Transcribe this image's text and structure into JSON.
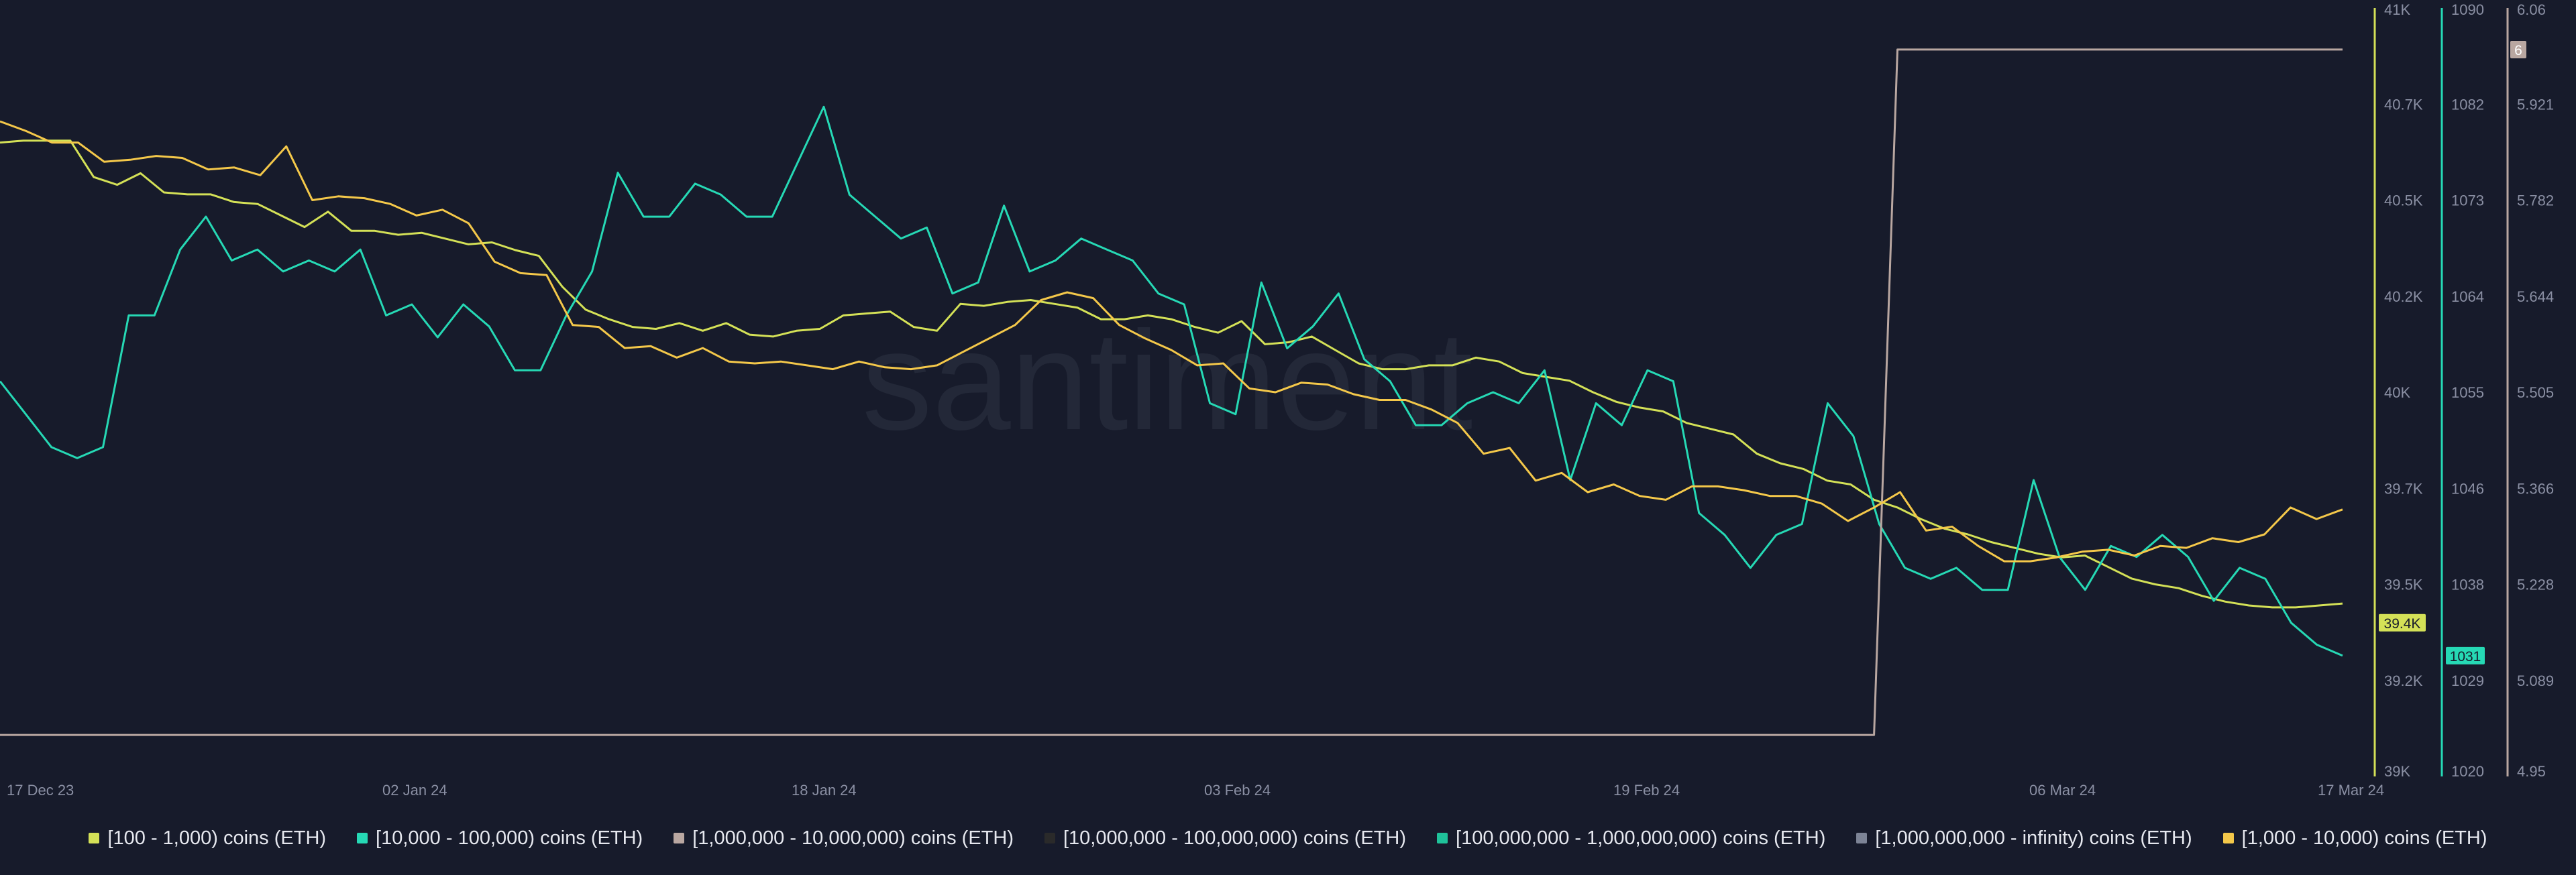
{
  "watermark": "santiment",
  "chart_data": {
    "type": "line",
    "x_ticks": [
      "17 Dec 23",
      "02 Jan 24",
      "18 Jan 24",
      "03 Feb 24",
      "19 Feb 24",
      "06 Mar 24",
      "17 Mar 24"
    ],
    "axes": [
      {
        "id": "a1",
        "color": "#d4e157",
        "ticks": [
          "41K",
          "40.7K",
          "40.5K",
          "40.2K",
          "40K",
          "39.7K",
          "39.5K",
          "39.2K",
          "39K"
        ],
        "ylim": [
          39000,
          41000
        ],
        "badge": "39.4K"
      },
      {
        "id": "a2",
        "color": "#26d9b5",
        "ticks": [
          "1090",
          "1082",
          "1073",
          "1064",
          "1055",
          "1046",
          "1038",
          "1029",
          "1020"
        ],
        "ylim": [
          1020,
          1090
        ],
        "badge": "1031"
      },
      {
        "id": "a3",
        "color": "#b9a7a1",
        "ticks": [
          "6.06",
          "5.921",
          "5.782",
          "5.644",
          "5.505",
          "5.366",
          "5.228",
          "5.089",
          "4.95"
        ],
        "ylim": [
          4.95,
          6.06
        ],
        "badge": "6"
      }
    ],
    "series": [
      {
        "name": "[100 - 1,000) coins (ETH)",
        "color": "#d4e157",
        "axis": "a1",
        "values": [
          40650,
          40655,
          40655,
          40655,
          40560,
          40540,
          40570,
          40520,
          40515,
          40515,
          40495,
          40490,
          40460,
          40430,
          40470,
          40420,
          40420,
          40410,
          40415,
          40400,
          40385,
          40390,
          40370,
          40355,
          40275,
          40215,
          40190,
          40170,
          40165,
          40180,
          40160,
          40180,
          40150,
          40145,
          40160,
          40165,
          40200,
          40205,
          40210,
          40170,
          40160,
          40230,
          40225,
          40235,
          40240,
          40230,
          40220,
          40190,
          40190,
          40200,
          40190,
          40170,
          40155,
          40185,
          40125,
          40130,
          40145,
          40110,
          40075,
          40060,
          40060,
          40070,
          40070,
          40090,
          40080,
          40050,
          40040,
          40030,
          40000,
          39975,
          39960,
          39950,
          39920,
          39905,
          39890,
          39840,
          39815,
          39800,
          39770,
          39760,
          39720,
          39700,
          39670,
          39645,
          39630,
          39610,
          39595,
          39580,
          39570,
          39575,
          39545,
          39515,
          39500,
          39490,
          39470,
          39455,
          39445,
          39440,
          39440,
          39445,
          39450
        ]
      },
      {
        "name": "[10,000 - 100,000) coins (ETH)",
        "color": "#26d9b5",
        "axis": "a2",
        "values": [
          1056,
          1053,
          1050,
          1049,
          1050,
          1062,
          1062,
          1068,
          1071,
          1067,
          1068,
          1066,
          1067,
          1066,
          1068,
          1062,
          1063,
          1060,
          1063,
          1061,
          1057,
          1057,
          1062,
          1066,
          1075,
          1071,
          1071,
          1074,
          1073,
          1071,
          1071,
          1076,
          1081,
          1073,
          1071,
          1069,
          1070,
          1064,
          1065,
          1072,
          1066,
          1067,
          1069,
          1068,
          1067,
          1064,
          1063,
          1054,
          1053,
          1065,
          1059,
          1061,
          1064,
          1058,
          1056,
          1052,
          1052,
          1054,
          1055,
          1054,
          1057,
          1047,
          1054,
          1052,
          1057,
          1056,
          1044,
          1042,
          1039,
          1042,
          1043,
          1054,
          1051,
          1043,
          1039,
          1038,
          1039,
          1037,
          1037,
          1047,
          1040,
          1037,
          1041,
          1040,
          1042,
          1040,
          1036,
          1039,
          1038,
          1034,
          1032,
          1031
        ]
      },
      {
        "name": "[1,000,000 - 10,000,000) coins (ETH)",
        "color": "#b9a7a1",
        "axis": "a3",
        "values": [
          5.01,
          5.01,
          5.01,
          5.01,
          5.01,
          5.01,
          5.01,
          5.01,
          5.01,
          5.01,
          5.01,
          5.01,
          5.01,
          5.01,
          5.01,
          5.01,
          5.01,
          5.01,
          5.01,
          5.01,
          5.01,
          5.01,
          5.01,
          5.01,
          5.01,
          5.01,
          5.01,
          5.01,
          5.01,
          5.01,
          5.01,
          5.01,
          5.01,
          5.01,
          5.01,
          5.01,
          5.01,
          5.01,
          5.01,
          5.01,
          5.01,
          5.01,
          5.01,
          5.01,
          5.01,
          5.01,
          5.01,
          5.01,
          5.01,
          5.01,
          5.01,
          5.01,
          5.01,
          5.01,
          5.01,
          5.01,
          5.01,
          5.01,
          5.01,
          5.01,
          5.01,
          5.01,
          5.01,
          5.01,
          5.01,
          5.01,
          5.01,
          5.01,
          5.01,
          5.01,
          5.01,
          5.01,
          5.01,
          5.01,
          5.01,
          5.01,
          5.01,
          5.01,
          5.01,
          5.01,
          5.01,
          6,
          6,
          6,
          6,
          6,
          6,
          6,
          6,
          6,
          6,
          6,
          6,
          6,
          6,
          6,
          6,
          6,
          6,
          6,
          6
        ]
      },
      {
        "name": "[10,000,000 - 100,000,000) coins (ETH)",
        "color": "#2a2a2a",
        "axis": "a1",
        "values": []
      },
      {
        "name": "[100,000,000 - 1,000,000,000) coins (ETH)",
        "color": "#1fc29a",
        "axis": "a2",
        "values": []
      },
      {
        "name": "[1,000,000,000 - infinity) coins (ETH)",
        "color": "#7d8496",
        "axis": "a2",
        "values": []
      },
      {
        "name": "[1,000 - 10,000) coins (ETH)",
        "color": "#f4c84a",
        "axis": "a1",
        "values": [
          40705,
          40680,
          40650,
          40650,
          40600,
          40605,
          40615,
          40610,
          40580,
          40585,
          40565,
          40640,
          40500,
          40510,
          40505,
          40490,
          40460,
          40475,
          40440,
          40340,
          40310,
          40305,
          40175,
          40170,
          40115,
          40120,
          40090,
          40115,
          40080,
          40075,
          40080,
          40070,
          40060,
          40080,
          40065,
          40060,
          40070,
          40105,
          40140,
          40175,
          40240,
          40260,
          40245,
          40175,
          40140,
          40110,
          40070,
          40075,
          40010,
          40000,
          40025,
          40020,
          39995,
          39980,
          39980,
          39955,
          39920,
          39840,
          39855,
          39770,
          39790,
          39740,
          39760,
          39730,
          39720,
          39755,
          39755,
          39745,
          39730,
          39730,
          39710,
          39665,
          39700,
          39740,
          39640,
          39650,
          39600,
          39560,
          39560,
          39570,
          39585,
          39590,
          39575,
          39600,
          39595,
          39620,
          39610,
          39630,
          39700,
          39670,
          39695
        ]
      }
    ]
  }
}
